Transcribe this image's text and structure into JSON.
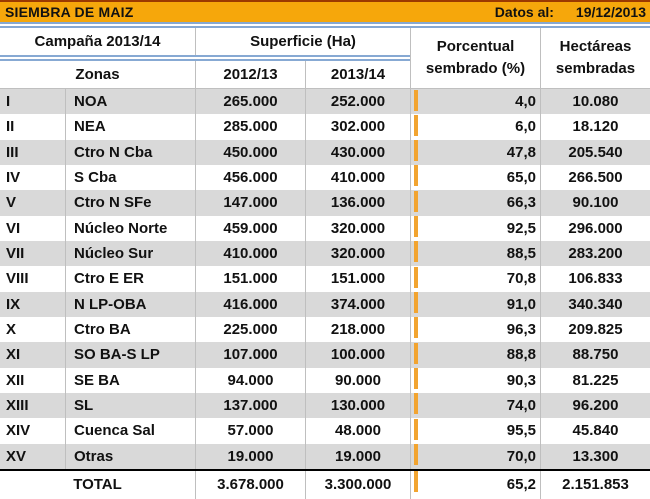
{
  "titlebar": {
    "title": "SIEMBRA DE MAIZ",
    "datos_label": "Datos al:",
    "date": "19/12/2013"
  },
  "header": {
    "campana": "Campaña 2013/14",
    "superficie": "Superficie (Ha)",
    "porcentual": "Porcentual sembrado (%)",
    "hectareas": "Hectáreas sembradas",
    "zonas": "Zonas",
    "col_2012": "2012/13",
    "col_2013": "2013/14"
  },
  "rows": [
    {
      "num": "I",
      "zona": "NOA",
      "s2012": "265.000",
      "s2013": "252.000",
      "pct": 4.0,
      "pct_label": "4,0",
      "ha": "10.080"
    },
    {
      "num": "II",
      "zona": "NEA",
      "s2012": "285.000",
      "s2013": "302.000",
      "pct": 6.0,
      "pct_label": "6,0",
      "ha": "18.120"
    },
    {
      "num": "III",
      "zona": "Ctro N Cba",
      "s2012": "450.000",
      "s2013": "430.000",
      "pct": 47.8,
      "pct_label": "47,8",
      "ha": "205.540"
    },
    {
      "num": "IV",
      "zona": "S Cba",
      "s2012": "456.000",
      "s2013": "410.000",
      "pct": 65.0,
      "pct_label": "65,0",
      "ha": "266.500"
    },
    {
      "num": "V",
      "zona": "Ctro N SFe",
      "s2012": "147.000",
      "s2013": "136.000",
      "pct": 66.3,
      "pct_label": "66,3",
      "ha": "90.100"
    },
    {
      "num": "VI",
      "zona": "Núcleo Norte",
      "s2012": "459.000",
      "s2013": "320.000",
      "pct": 92.5,
      "pct_label": "92,5",
      "ha": "296.000"
    },
    {
      "num": "VII",
      "zona": "Núcleo Sur",
      "s2012": "410.000",
      "s2013": "320.000",
      "pct": 88.5,
      "pct_label": "88,5",
      "ha": "283.200"
    },
    {
      "num": "VIII",
      "zona": "Ctro E ER",
      "s2012": "151.000",
      "s2013": "151.000",
      "pct": 70.8,
      "pct_label": "70,8",
      "ha": "106.833"
    },
    {
      "num": "IX",
      "zona": "N LP-OBA",
      "s2012": "416.000",
      "s2013": "374.000",
      "pct": 91.0,
      "pct_label": "91,0",
      "ha": "340.340"
    },
    {
      "num": "X",
      "zona": "Ctro BA",
      "s2012": "225.000",
      "s2013": "218.000",
      "pct": 96.3,
      "pct_label": "96,3",
      "ha": "209.825"
    },
    {
      "num": "XI",
      "zona": "SO BA-S LP",
      "s2012": "107.000",
      "s2013": "100.000",
      "pct": 88.8,
      "pct_label": "88,8",
      "ha": "88.750"
    },
    {
      "num": "XII",
      "zona": "SE BA",
      "s2012": "94.000",
      "s2013": "90.000",
      "pct": 90.3,
      "pct_label": "90,3",
      "ha": "81.225"
    },
    {
      "num": "XIII",
      "zona": "SL",
      "s2012": "137.000",
      "s2013": "130.000",
      "pct": 74.0,
      "pct_label": "74,0",
      "ha": "96.200"
    },
    {
      "num": "XIV",
      "zona": "Cuenca Sal",
      "s2012": "57.000",
      "s2013": "48.000",
      "pct": 95.5,
      "pct_label": "95,5",
      "ha": "45.840"
    },
    {
      "num": "XV",
      "zona": "Otras",
      "s2012": "19.000",
      "s2013": "19.000",
      "pct": 70.0,
      "pct_label": "70,0",
      "ha": "13.300"
    }
  ],
  "total": {
    "label": "TOTAL",
    "s2012": "3.678.000",
    "s2013": "3.300.000",
    "pct": 65.2,
    "pct_label": "65,2",
    "ha": "2.151.853"
  },
  "colors": {
    "band": "#F6A70B",
    "band_top_border": "#9C3A00",
    "bar_border": "#F2A430",
    "bar_fill_left": "#F7A421",
    "bar_fill_right": "#FEF6E4",
    "row_alt": "#D9D9D9",
    "gridline": "#BFBFBF",
    "divider_blue": "#87A9D3"
  },
  "chart_data": {
    "type": "table",
    "title": "SIEMBRA DE MAIZ — Datos al: 19/12/2013",
    "columns": [
      "Zona nº",
      "Zona",
      "Superficie (Ha) 2012/13",
      "Superficie (Ha) 2013/14",
      "Porcentual sembrado (%)",
      "Hectáreas sembradas"
    ],
    "bar_column": "Porcentual sembrado (%)",
    "bar_range": [
      0,
      100
    ],
    "rows": [
      [
        "I",
        "NOA",
        265000,
        252000,
        4.0,
        10080
      ],
      [
        "II",
        "NEA",
        285000,
        302000,
        6.0,
        18120
      ],
      [
        "III",
        "Ctro N Cba",
        450000,
        430000,
        47.8,
        205540
      ],
      [
        "IV",
        "S Cba",
        456000,
        410000,
        65.0,
        266500
      ],
      [
        "V",
        "Ctro N SFe",
        147000,
        136000,
        66.3,
        90100
      ],
      [
        "VI",
        "Núcleo Norte",
        459000,
        320000,
        92.5,
        296000
      ],
      [
        "VII",
        "Núcleo Sur",
        410000,
        320000,
        88.5,
        283200
      ],
      [
        "VIII",
        "Ctro E ER",
        151000,
        151000,
        70.8,
        106833
      ],
      [
        "IX",
        "N LP-OBA",
        416000,
        374000,
        91.0,
        340340
      ],
      [
        "X",
        "Ctro BA",
        225000,
        218000,
        96.3,
        209825
      ],
      [
        "XI",
        "SO BA-S LP",
        107000,
        100000,
        88.8,
        88750
      ],
      [
        "XII",
        "SE BA",
        94000,
        90000,
        90.3,
        81225
      ],
      [
        "XIII",
        "SL",
        137000,
        130000,
        74.0,
        96200
      ],
      [
        "XIV",
        "Cuenca Sal",
        57000,
        48000,
        95.5,
        45840
      ],
      [
        "XV",
        "Otras",
        19000,
        19000,
        70.0,
        13300
      ]
    ],
    "total_row": [
      "",
      "TOTAL",
      3678000,
      3300000,
      65.2,
      2151853
    ]
  }
}
